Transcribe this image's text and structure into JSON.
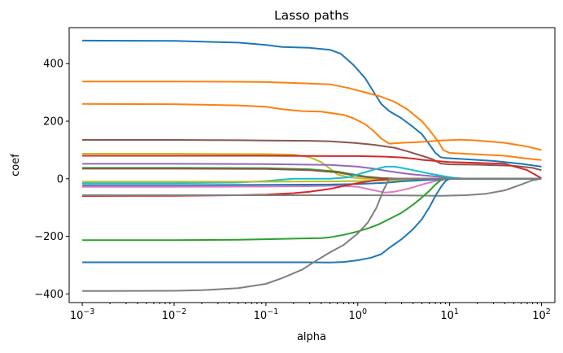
{
  "chart_data": {
    "type": "line",
    "title": "Lasso paths",
    "xlabel": "alpha",
    "ylabel": "coef",
    "xscale": "log",
    "xlim": [
      0.00072,
      140
    ],
    "ylim": [
      -430,
      525
    ],
    "grid": false,
    "x_ticks": [
      {
        "value": 0.001,
        "base": "10",
        "exp": "−3"
      },
      {
        "value": 0.01,
        "base": "10",
        "exp": "−2"
      },
      {
        "value": 0.1,
        "base": "10",
        "exp": "−1"
      },
      {
        "value": 1,
        "base": "10",
        "exp": "0"
      },
      {
        "value": 10,
        "base": "10",
        "exp": "1"
      },
      {
        "value": 100,
        "base": "10",
        "exp": "2"
      }
    ],
    "y_ticks": [
      {
        "value": 400,
        "label": "400"
      },
      {
        "value": 200,
        "label": "200"
      },
      {
        "value": 0,
        "label": "0"
      },
      {
        "value": -200,
        "label": "−200"
      },
      {
        "value": -400,
        "label": "−400"
      }
    ],
    "series": [
      {
        "color": "#1f77b4",
        "points": [
          [
            0.001,
            480
          ],
          [
            0.01,
            479
          ],
          [
            0.05,
            473
          ],
          [
            0.1,
            465
          ],
          [
            0.15,
            458
          ],
          [
            0.3,
            455
          ],
          [
            0.5,
            448
          ],
          [
            0.65,
            435
          ],
          [
            0.9,
            395
          ],
          [
            1.2,
            350
          ],
          [
            1.5,
            300
          ],
          [
            1.8,
            260
          ],
          [
            2.2,
            235
          ],
          [
            3,
            210
          ],
          [
            4,
            180
          ],
          [
            5,
            155
          ],
          [
            6,
            120
          ],
          [
            7,
            90
          ],
          [
            8,
            75
          ],
          [
            9,
            72
          ],
          [
            15,
            68
          ],
          [
            30,
            62
          ],
          [
            60,
            52
          ],
          [
            100,
            42
          ]
        ]
      },
      {
        "color": "#ff7f0e",
        "points": [
          [
            0.001,
            338
          ],
          [
            0.01,
            338
          ],
          [
            0.05,
            337
          ],
          [
            0.1,
            336
          ],
          [
            0.2,
            333
          ],
          [
            0.5,
            328
          ],
          [
            0.8,
            315
          ],
          [
            1.2,
            300
          ],
          [
            1.8,
            285
          ],
          [
            2.5,
            268
          ],
          [
            3.5,
            240
          ],
          [
            5,
            200
          ],
          [
            6,
            170
          ],
          [
            7.5,
            130
          ],
          [
            8.5,
            100
          ],
          [
            10,
            90
          ],
          [
            20,
            85
          ],
          [
            40,
            80
          ],
          [
            70,
            70
          ],
          [
            100,
            65
          ]
        ]
      },
      {
        "color": "#ff7f0e",
        "points": [
          [
            0.001,
            260
          ],
          [
            0.01,
            259
          ],
          [
            0.05,
            255
          ],
          [
            0.1,
            250
          ],
          [
            0.15,
            242
          ],
          [
            0.25,
            235
          ],
          [
            0.4,
            233
          ],
          [
            0.55,
            227
          ],
          [
            0.7,
            222
          ],
          [
            0.9,
            210
          ],
          [
            1.2,
            190
          ],
          [
            1.5,
            165
          ],
          [
            1.8,
            140
          ],
          [
            2.2,
            122
          ],
          [
            3,
            125
          ],
          [
            5,
            128
          ],
          [
            8,
            133
          ],
          [
            13,
            136
          ],
          [
            20,
            133
          ],
          [
            40,
            125
          ],
          [
            70,
            112
          ],
          [
            100,
            100
          ]
        ]
      },
      {
        "color": "#8c564b",
        "points": [
          [
            0.001,
            135
          ],
          [
            0.01,
            135
          ],
          [
            0.05,
            134
          ],
          [
            0.1,
            133
          ],
          [
            0.3,
            132
          ],
          [
            0.5,
            130
          ],
          [
            0.9,
            125
          ],
          [
            1.5,
            118
          ],
          [
            2.5,
            108
          ],
          [
            3.5,
            95
          ],
          [
            5,
            80
          ],
          [
            6.5,
            68
          ],
          [
            8,
            53
          ],
          [
            10,
            50
          ],
          [
            20,
            49
          ],
          [
            50,
            45
          ],
          [
            80,
            38
          ],
          [
            100,
            30
          ]
        ]
      },
      {
        "color": "#bcbd22",
        "points": [
          [
            0.001,
            87
          ],
          [
            0.01,
            87
          ],
          [
            0.05,
            86
          ],
          [
            0.1,
            86
          ],
          [
            0.2,
            84
          ],
          [
            0.3,
            75
          ],
          [
            0.4,
            58
          ],
          [
            0.5,
            35
          ],
          [
            0.6,
            15
          ],
          [
            0.8,
            5
          ],
          [
            1.2,
            0
          ],
          [
            100,
            0
          ]
        ]
      },
      {
        "color": "#d62728",
        "points": [
          [
            0.001,
            80
          ],
          [
            0.01,
            80
          ],
          [
            0.1,
            80
          ],
          [
            0.5,
            79
          ],
          [
            1,
            79
          ],
          [
            2,
            77
          ],
          [
            3,
            74
          ],
          [
            4,
            70
          ],
          [
            5,
            66
          ],
          [
            7,
            62
          ],
          [
            10,
            58
          ],
          [
            20,
            55
          ],
          [
            40,
            52
          ],
          [
            70,
            30
          ],
          [
            100,
            2
          ]
        ]
      },
      {
        "color": "#9467bd",
        "points": [
          [
            0.001,
            52
          ],
          [
            0.01,
            52
          ],
          [
            0.1,
            51
          ],
          [
            0.5,
            48
          ],
          [
            1,
            42
          ],
          [
            1.5,
            35
          ],
          [
            2,
            28
          ],
          [
            3,
            20
          ],
          [
            4,
            15
          ],
          [
            6,
            10
          ],
          [
            10,
            4
          ],
          [
            15,
            0
          ],
          [
            100,
            0
          ]
        ]
      },
      {
        "color": "#2ca02c",
        "points": [
          [
            0.001,
            38
          ],
          [
            0.01,
            38
          ],
          [
            0.1,
            37
          ],
          [
            0.3,
            33
          ],
          [
            0.6,
            25
          ],
          [
            0.9,
            15
          ],
          [
            1.2,
            8
          ],
          [
            1.8,
            3
          ],
          [
            3,
            0
          ],
          [
            100,
            0
          ]
        ]
      },
      {
        "color": "#8c564b",
        "points": [
          [
            0.001,
            35
          ],
          [
            0.01,
            35
          ],
          [
            0.1,
            34
          ],
          [
            0.3,
            30
          ],
          [
            0.6,
            22
          ],
          [
            0.9,
            12
          ],
          [
            1.3,
            5
          ],
          [
            2,
            1
          ],
          [
            3,
            0
          ],
          [
            100,
            0
          ]
        ]
      },
      {
        "color": "#17becf",
        "points": [
          [
            0.001,
            -15
          ],
          [
            0.01,
            -15
          ],
          [
            0.05,
            -13
          ],
          [
            0.1,
            -8
          ],
          [
            0.15,
            -3
          ],
          [
            0.2,
            0
          ],
          [
            0.5,
            0
          ],
          [
            0.8,
            5
          ],
          [
            1,
            15
          ],
          [
            1.5,
            32
          ],
          [
            2,
            42
          ],
          [
            2.5,
            42
          ],
          [
            3,
            38
          ],
          [
            4,
            30
          ],
          [
            6,
            18
          ],
          [
            9,
            8
          ],
          [
            12,
            2
          ],
          [
            15,
            0
          ],
          [
            100,
            0
          ]
        ]
      },
      {
        "color": "#bcbd22",
        "points": [
          [
            0.001,
            -10
          ],
          [
            0.01,
            -10
          ],
          [
            0.1,
            -10
          ],
          [
            0.5,
            -9
          ],
          [
            1,
            -8
          ],
          [
            2,
            -6
          ],
          [
            4,
            -3
          ],
          [
            6,
            -1
          ],
          [
            8,
            0
          ],
          [
            100,
            0
          ]
        ]
      },
      {
        "color": "#e377c2",
        "points": [
          [
            0.001,
            -28
          ],
          [
            0.01,
            -28
          ],
          [
            0.1,
            -27
          ],
          [
            0.3,
            -26
          ],
          [
            0.6,
            -24
          ],
          [
            1,
            -28
          ],
          [
            1.5,
            -40
          ],
          [
            2,
            -48
          ],
          [
            2.5,
            -45
          ],
          [
            3.5,
            -35
          ],
          [
            5,
            -20
          ],
          [
            7,
            -8
          ],
          [
            9,
            -2
          ],
          [
            12,
            0
          ],
          [
            100,
            0
          ]
        ]
      },
      {
        "color": "#1f77b4",
        "points": [
          [
            0.001,
            -22
          ],
          [
            0.01,
            -22
          ],
          [
            0.1,
            -21
          ],
          [
            0.5,
            -20
          ],
          [
            1,
            -18
          ],
          [
            2,
            -14
          ],
          [
            3,
            -9
          ],
          [
            5,
            -5
          ],
          [
            8,
            -2
          ],
          [
            10,
            0
          ],
          [
            100,
            0
          ]
        ]
      },
      {
        "color": "#d62728",
        "points": [
          [
            0.001,
            -60
          ],
          [
            0.01,
            -59
          ],
          [
            0.05,
            -57
          ],
          [
            0.1,
            -55
          ],
          [
            0.2,
            -50
          ],
          [
            0.3,
            -45
          ],
          [
            0.5,
            -35
          ],
          [
            0.7,
            -25
          ],
          [
            1,
            -15
          ],
          [
            1.5,
            -6
          ],
          [
            2,
            -2
          ],
          [
            3,
            0
          ],
          [
            100,
            0
          ]
        ]
      },
      {
        "color": "#7f7f7f",
        "points": [
          [
            0.001,
            -57
          ],
          [
            0.01,
            -57
          ],
          [
            0.1,
            -57
          ],
          [
            1,
            -57
          ],
          [
            3,
            -58
          ],
          [
            8,
            -59
          ],
          [
            15,
            -57
          ],
          [
            25,
            -52
          ],
          [
            40,
            -40
          ],
          [
            60,
            -20
          ],
          [
            80,
            -5
          ],
          [
            100,
            0
          ]
        ]
      },
      {
        "color": "#2ca02c",
        "points": [
          [
            0.001,
            -213
          ],
          [
            0.01,
            -213
          ],
          [
            0.05,
            -212
          ],
          [
            0.1,
            -210
          ],
          [
            0.2,
            -208
          ],
          [
            0.4,
            -206
          ],
          [
            0.5,
            -203
          ],
          [
            0.7,
            -195
          ],
          [
            1,
            -183
          ],
          [
            1.3,
            -172
          ],
          [
            1.7,
            -158
          ],
          [
            2.2,
            -140
          ],
          [
            3,
            -118
          ],
          [
            4,
            -90
          ],
          [
            5,
            -65
          ],
          [
            6,
            -42
          ],
          [
            7,
            -20
          ],
          [
            8,
            -5
          ],
          [
            9,
            0
          ],
          [
            100,
            0
          ]
        ]
      },
      {
        "color": "#1f77b4",
        "points": [
          [
            0.001,
            -290
          ],
          [
            0.01,
            -290
          ],
          [
            0.1,
            -290
          ],
          [
            0.3,
            -290
          ],
          [
            0.5,
            -291
          ],
          [
            0.7,
            -289
          ],
          [
            1,
            -283
          ],
          [
            1.4,
            -274
          ],
          [
            1.8,
            -262
          ],
          [
            2.2,
            -240
          ],
          [
            3,
            -210
          ],
          [
            4,
            -175
          ],
          [
            5,
            -140
          ],
          [
            6,
            -100
          ],
          [
            7,
            -60
          ],
          [
            8,
            -30
          ],
          [
            9,
            -8
          ],
          [
            10,
            0
          ],
          [
            100,
            0
          ]
        ]
      },
      {
        "color": "#7f7f7f",
        "points": [
          [
            0.001,
            -390
          ],
          [
            0.01,
            -389
          ],
          [
            0.02,
            -387
          ],
          [
            0.05,
            -380
          ],
          [
            0.1,
            -365
          ],
          [
            0.15,
            -345
          ],
          [
            0.25,
            -315
          ],
          [
            0.35,
            -285
          ],
          [
            0.5,
            -255
          ],
          [
            0.7,
            -230
          ],
          [
            1,
            -190
          ],
          [
            1.3,
            -150
          ],
          [
            1.6,
            -100
          ],
          [
            1.9,
            -40
          ],
          [
            2.2,
            0
          ],
          [
            100,
            0
          ]
        ]
      }
    ]
  }
}
